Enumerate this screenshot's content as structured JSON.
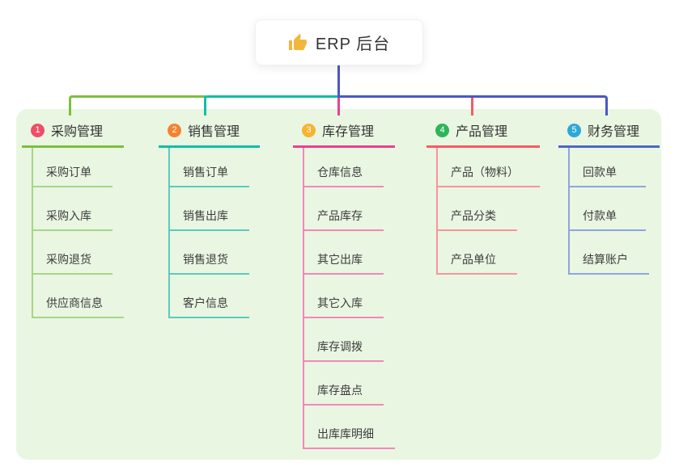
{
  "canvas": {
    "background": "#ffffff",
    "panel_background": "#e9f6e2"
  },
  "root": {
    "icon": "thumbs-up-icon",
    "icon_color": "#f2b63c",
    "title": "ERP 后台"
  },
  "connectors": {
    "root_line": "#4a57c9",
    "bus_left": "#7cbf3f",
    "bus_mid": "#12bda6",
    "bus_right": "#4a57c9",
    "drop_center": "#e8418f",
    "drop_branch4": "#f65b62"
  },
  "branches": [
    {
      "num": "1",
      "label": "采购管理",
      "colors": {
        "badge": "#ee4e68",
        "line": "#7cbf3f",
        "child_line": "#a6d687"
      },
      "children": [
        "采购订单",
        "采购入库",
        "采购退货",
        "供应商信息"
      ]
    },
    {
      "num": "2",
      "label": "销售管理",
      "colors": {
        "badge": "#f58233",
        "line": "#12bda6",
        "child_line": "#5bcabc"
      },
      "children": [
        "销售订单",
        "销售出库",
        "销售退货",
        "客户信息"
      ]
    },
    {
      "num": "3",
      "label": "库存管理",
      "colors": {
        "badge": "#f8b331",
        "line": "#e8418f",
        "child_line": "#f387bb"
      },
      "children": [
        "仓库信息",
        "产品库存",
        "其它出库",
        "其它入库",
        "库存调拨",
        "库存盘点",
        "出库库明细"
      ]
    },
    {
      "num": "4",
      "label": "产品管理",
      "colors": {
        "badge": "#2fb457",
        "line": "#f65b62",
        "child_line": "#f9939b"
      },
      "children": [
        "产品（物料）",
        "产品分类",
        "产品单位"
      ]
    },
    {
      "num": "5",
      "label": "财务管理",
      "colors": {
        "badge": "#2da8da",
        "line": "#4c66c9",
        "child_line": "#8ea5de"
      },
      "children": [
        "回款单",
        "付款单",
        "结算账户"
      ]
    }
  ]
}
